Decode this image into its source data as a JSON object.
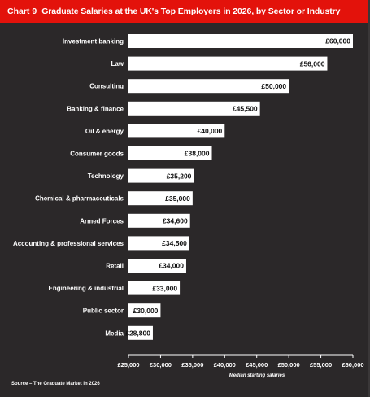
{
  "header": {
    "chart_label": "Chart 9",
    "title": "Graduate Salaries at the UK's Top Employers in 2026, by Sector or Industry"
  },
  "source": "Source – The Graduate Market in 2026",
  "colors": {
    "title_bar": "#e3120b",
    "background": "#2b2829",
    "bar": "#ffffff",
    "text": "#ffffff"
  },
  "chart_data": {
    "type": "bar",
    "orientation": "horizontal",
    "title": "Graduate Salaries at the UK's Top Employers in 2026, by Sector or Industry",
    "xlabel": "Median starting salaries",
    "ylabel": "",
    "xlim": [
      25000,
      60000
    ],
    "grid": false,
    "categories": [
      "Investment banking",
      "Law",
      "Consulting",
      "Banking & finance",
      "Oil & energy",
      "Consumer goods",
      "Technology",
      "Chemical & pharmaceuticals",
      "Armed Forces",
      "Accounting & professional services",
      "Retail",
      "Engineering & industrial",
      "Public sector",
      "Media"
    ],
    "values": [
      60000,
      56000,
      50000,
      45500,
      40000,
      38000,
      35200,
      35000,
      34600,
      34500,
      34000,
      33000,
      30000,
      28800
    ],
    "value_labels": [
      "£60,000",
      "£56,000",
      "£50,000",
      "£45,500",
      "£40,000",
      "£38,000",
      "£35,200",
      "£35,000",
      "£34,600",
      "£34,500",
      "£34,000",
      "£33,000",
      "£30,000",
      "£28,800"
    ],
    "ticks": [
      25000,
      30000,
      35000,
      40000,
      45000,
      50000,
      55000,
      60000
    ],
    "tick_labels": [
      "£25,000",
      "£30,000",
      "£35,000",
      "£40,000",
      "£45,000",
      "£50,000",
      "£55,000",
      "£60,000"
    ]
  }
}
